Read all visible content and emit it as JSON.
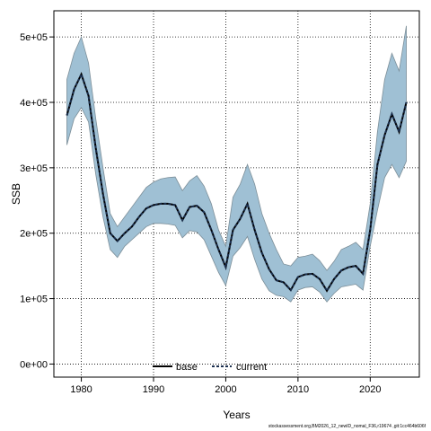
{
  "chart_data": {
    "type": "line",
    "xlabel": "Years",
    "ylabel": "SSB",
    "xlim": [
      1976.2,
      2026.8
    ],
    "ylim": [
      -20000,
      540000
    ],
    "x_ticks": [
      1980,
      1990,
      2000,
      2010,
      2020
    ],
    "x_tick_labels": [
      "1980",
      "1990",
      "2000",
      "2010",
      "2020"
    ],
    "y_ticks": [
      0,
      100000,
      200000,
      300000,
      400000,
      500000
    ],
    "y_tick_labels": [
      "0e+00",
      "1e+05",
      "2e+05",
      "3e+05",
      "4e+05",
      "5e+05"
    ],
    "grid": true,
    "legend_position": "bottom-center",
    "colors": {
      "band_fill": "#9fc0d4",
      "band_edge": "#7d8f99",
      "base_line": "#000000",
      "current_line": "#1b2f4e"
    },
    "x": [
      1978,
      1979,
      1980,
      1981,
      1982,
      1983,
      1984,
      1985,
      1986,
      1987,
      1988,
      1989,
      1990,
      1991,
      1992,
      1993,
      1994,
      1995,
      1996,
      1997,
      1998,
      1999,
      2000,
      2001,
      2002,
      2003,
      2004,
      2005,
      2006,
      2007,
      2008,
      2009,
      2010,
      2011,
      2012,
      2013,
      2014,
      2015,
      2016,
      2017,
      2018,
      2019,
      2020,
      2021,
      2022,
      2023,
      2024,
      2025
    ],
    "series": [
      {
        "name": "base",
        "style": "solid",
        "values": [
          380000,
          420000,
          443000,
          410000,
          330000,
          260000,
          200000,
          188000,
          200000,
          210000,
          225000,
          238000,
          243000,
          245000,
          245000,
          243000,
          220000,
          240000,
          242000,
          232000,
          205000,
          175000,
          148000,
          205000,
          222000,
          245000,
          205000,
          170000,
          145000,
          128000,
          125000,
          113000,
          133000,
          137000,
          138000,
          130000,
          112000,
          130000,
          143000,
          148000,
          150000,
          138000,
          205000,
          305000,
          350000,
          382000,
          355000,
          400000
        ]
      },
      {
        "name": "current",
        "style": "dashed",
        "values": [
          380000,
          420000,
          443000,
          410000,
          330000,
          260000,
          200000,
          188000,
          200000,
          210000,
          225000,
          238000,
          243000,
          245000,
          245000,
          243000,
          220000,
          240000,
          242000,
          232000,
          205000,
          175000,
          148000,
          205000,
          222000,
          245000,
          205000,
          170000,
          145000,
          128000,
          125000,
          113000,
          133000,
          137000,
          138000,
          130000,
          112000,
          130000,
          143000,
          148000,
          150000,
          138000,
          205000,
          305000,
          350000,
          382000,
          355000,
          400000
        ]
      }
    ],
    "upper": [
      435000,
      475000,
      500000,
      460000,
      375000,
      300000,
      230000,
      210000,
      225000,
      240000,
      255000,
      270000,
      278000,
      283000,
      285000,
      286000,
      265000,
      280000,
      288000,
      272000,
      245000,
      205000,
      180000,
      255000,
      275000,
      305000,
      275000,
      230000,
      200000,
      175000,
      153000,
      150000,
      163000,
      165000,
      168000,
      158000,
      143000,
      157000,
      175000,
      180000,
      186000,
      175000,
      245000,
      355000,
      435000,
      475000,
      448000,
      517000
    ],
    "lower": [
      335000,
      375000,
      392000,
      370000,
      290000,
      225000,
      175000,
      163000,
      180000,
      190000,
      200000,
      210000,
      215000,
      215000,
      214000,
      212000,
      193000,
      204000,
      202000,
      190000,
      165000,
      140000,
      120000,
      165000,
      178000,
      195000,
      160000,
      130000,
      112000,
      105000,
      103000,
      95000,
      113000,
      117000,
      118000,
      110000,
      95000,
      108000,
      118000,
      120000,
      122000,
      113000,
      180000,
      235000,
      285000,
      305000,
      285000,
      310000
    ]
  },
  "footnote": "stockassessment.org,BM2026_12_newID_nomal_F36,r19674 ,git:1cc464b606f"
}
